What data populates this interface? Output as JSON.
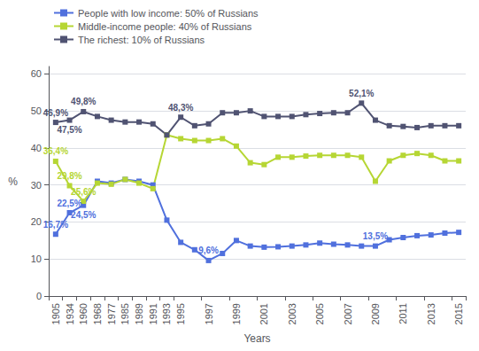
{
  "chart_data": {
    "type": "line",
    "xlabel": "Years",
    "ylabel": "%",
    "categories": [
      "1905",
      "1934",
      "1960",
      "1968",
      "1977",
      "1985",
      "1989",
      "1991",
      "1993",
      "1995",
      null,
      "1997",
      null,
      "1999",
      null,
      "2001",
      null,
      "2003",
      null,
      "2005",
      null,
      "2007",
      null,
      "2009",
      null,
      "2011",
      null,
      "2013",
      null,
      "2015"
    ],
    "series": [
      {
        "name": "People with low income: 50% of Russians",
        "values": [
          16.7,
          22.5,
          24.5,
          31.0,
          30.5,
          31.5,
          31.0,
          30.0,
          20.5,
          14.5,
          12.5,
          9.6,
          11.5,
          15.0,
          13.5,
          13.2,
          13.3,
          13.5,
          13.8,
          14.3,
          14.0,
          13.8,
          13.5,
          13.5,
          15.2,
          15.8,
          16.3,
          16.5,
          17.0,
          17.2
        ],
        "value_labels": [
          "16,7%",
          "22,5%",
          "24,5%",
          null,
          null,
          null,
          null,
          null,
          null,
          null,
          null,
          "9,6%",
          null,
          null,
          null,
          null,
          null,
          null,
          null,
          null,
          null,
          null,
          null,
          "13,5%",
          null,
          null,
          null,
          null,
          null,
          null
        ]
      },
      {
        "name": "Middle-income people: 40% of Russians",
        "values": [
          36.4,
          29.8,
          25.6,
          30.5,
          30.2,
          31.5,
          30.5,
          29.0,
          43.5,
          42.5,
          42.0,
          42.0,
          42.5,
          40.5,
          36.0,
          35.5,
          37.5,
          37.5,
          37.8,
          38.0,
          38.0,
          38.0,
          37.5,
          31.0,
          36.5,
          38.0,
          38.5,
          38.0,
          36.5,
          36.5
        ],
        "value_labels": [
          "36,4%",
          "29,8%",
          "25,6%",
          null,
          null,
          null,
          null,
          null,
          null,
          null,
          null,
          null,
          null,
          null,
          null,
          null,
          null,
          null,
          null,
          null,
          null,
          null,
          null,
          null,
          null,
          null,
          null,
          null,
          null,
          null
        ]
      },
      {
        "name": "The richest: 10% of Russians",
        "values": [
          46.9,
          47.5,
          49.8,
          48.5,
          47.5,
          47.0,
          47.0,
          46.5,
          43.5,
          48.3,
          46.0,
          46.5,
          49.5,
          49.5,
          50.0,
          48.5,
          48.5,
          48.5,
          49.0,
          49.3,
          49.5,
          49.5,
          52.1,
          47.5,
          46.0,
          45.8,
          45.5,
          46.0,
          46.0,
          46.0
        ],
        "value_labels": [
          "46,9%",
          "47,5%",
          "49,8%",
          null,
          null,
          null,
          null,
          null,
          null,
          "48,3%",
          null,
          null,
          null,
          null,
          null,
          null,
          null,
          null,
          null,
          null,
          null,
          null,
          "52,1%",
          null,
          null,
          null,
          null,
          null,
          null,
          null
        ]
      }
    ],
    "ylim": [
      0,
      62
    ],
    "yticks": [
      0,
      10,
      20,
      30,
      40,
      50,
      60
    ],
    "grid": true,
    "legend": "upper left",
    "marker": "square",
    "data_labels": true
  }
}
